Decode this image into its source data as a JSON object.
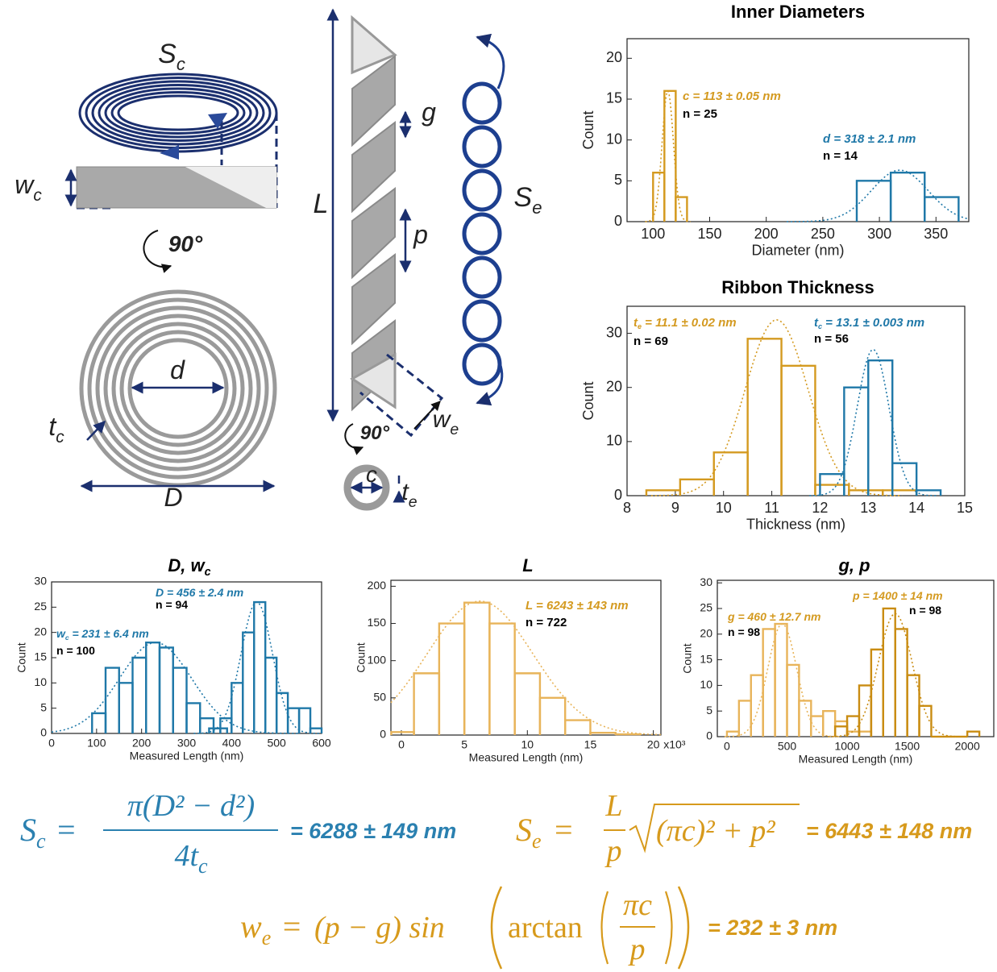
{
  "chart_data": [
    {
      "type": "histogram",
      "title": "Inner Diameters",
      "xlabel": "Diameter (nm)",
      "ylabel": "Count",
      "xlim": [
        77,
        379
      ],
      "ylim": [
        0,
        22.4
      ],
      "xticks": [
        100,
        150,
        200,
        250,
        300,
        350
      ],
      "yticks": [
        0,
        5,
        10,
        15,
        20
      ],
      "series": [
        {
          "color": "#d49a20",
          "bins": [
            100,
            110,
            120,
            130
          ],
          "values": [
            6,
            16,
            3
          ],
          "fit": {
            "mean": 113,
            "sd": 5,
            "peak": 16
          }
        },
        {
          "color": "#1f78a8",
          "bins": [
            280,
            310,
            340,
            370
          ],
          "values": [
            5,
            6,
            3
          ],
          "fit": {
            "mean": 318,
            "sd": 25,
            "peak": 6.3
          }
        }
      ],
      "annotations": [
        {
          "text": "c = 113 ± 0.05 nm",
          "color": "#d49a20",
          "italic": true
        },
        {
          "text": "n = 25",
          "color": "#000000",
          "italic": false
        },
        {
          "text": "d = 318 ± 2.1 nm",
          "color": "#1f78a8",
          "italic": true
        },
        {
          "text": "n = 14",
          "color": "#000000",
          "italic": false
        }
      ]
    },
    {
      "type": "histogram",
      "title": "Ribbon Thickness",
      "xlabel": "Thickness (nm)",
      "ylabel": "Count",
      "xlim": [
        8,
        15
      ],
      "ylim": [
        0,
        35
      ],
      "xticks": [
        8,
        9,
        10,
        11,
        12,
        13,
        14,
        15
      ],
      "yticks": [
        0,
        10,
        20,
        30
      ],
      "series": [
        {
          "color": "#d49a20",
          "bins": [
            8.4,
            9.1,
            9.8,
            10.5,
            11.2,
            11.9,
            12.6,
            13.3,
            14.0
          ],
          "values": [
            1,
            3,
            8,
            29,
            24,
            2,
            1,
            1
          ],
          "fit": {
            "mean": 11.1,
            "sd": 0.65,
            "peak": 32.5
          }
        },
        {
          "color": "#1f78a8",
          "bins": [
            12.0,
            12.5,
            13.0,
            13.5,
            14.0,
            14.5
          ],
          "values": [
            4,
            20,
            25,
            6,
            1
          ],
          "fit": {
            "mean": 13.1,
            "sd": 0.33,
            "peak": 27
          }
        }
      ],
      "annotations": [
        {
          "text": "t",
          "sub": "e",
          "rest": " = 11.1 ± 0.02 nm",
          "color": "#d49a20",
          "italic": true
        },
        {
          "text": "n = 69",
          "color": "#000000",
          "italic": false
        },
        {
          "text": "t",
          "sub": "c",
          "rest": " = 13.1 ± 0.003 nm",
          "color": "#1f78a8",
          "italic": true
        },
        {
          "text": "n = 56",
          "color": "#000000",
          "italic": false
        }
      ]
    },
    {
      "type": "histogram",
      "title": "D, w",
      "title_sub": "c",
      "xlabel": "Measured Length (nm)",
      "ylabel": "Count",
      "xlim": [
        0,
        600
      ],
      "ylim": [
        0,
        30
      ],
      "xticks": [
        0,
        100,
        200,
        300,
        400,
        500,
        600
      ],
      "yticks": [
        0,
        5,
        10,
        15,
        20,
        25,
        30
      ],
      "series": [
        {
          "color": "#1f78a8",
          "bins": [
            90,
            120,
            150,
            180,
            210,
            240,
            270,
            300,
            330,
            360,
            390
          ],
          "values": [
            4,
            13,
            10,
            15,
            18,
            17,
            13,
            6,
            3,
            1
          ],
          "fit": {
            "mean": 231,
            "sd": 80,
            "peak": 18
          }
        },
        {
          "color": "#1f78a8",
          "bins": [
            350,
            375,
            400,
            425,
            450,
            475,
            500,
            525,
            550,
            575,
            600
          ],
          "values": [
            1,
            3,
            10,
            20,
            26,
            15,
            8,
            5,
            5,
            1
          ],
          "fit": {
            "mean": 456,
            "sd": 35,
            "peak": 26
          }
        }
      ],
      "annotations": [
        {
          "text": "D = 456 ± 2.4 nm",
          "color": "#1f78a8",
          "italic": true
        },
        {
          "text": "n = 94",
          "color": "#000000",
          "italic": false
        },
        {
          "text": "w",
          "sub": "c",
          "rest": " = 231 ± 6.4 nm",
          "color": "#1f78a8",
          "italic": true
        },
        {
          "text": "n = 100",
          "color": "#000000",
          "italic": false
        }
      ]
    },
    {
      "type": "histogram",
      "title": "L",
      "xlabel": "Measured Length (nm)",
      "ylabel": "Count",
      "x_multiplier": "x10³",
      "xlim": [
        -0.83,
        20.6
      ],
      "ylim": [
        0,
        208
      ],
      "xticks": [
        0,
        5,
        10,
        15,
        20
      ],
      "yticks": [
        0,
        50,
        100,
        150,
        200
      ],
      "series": [
        {
          "color": "#e8b45a",
          "bins": [
            -0.8,
            1,
            3,
            5,
            7,
            9,
            11,
            13,
            15,
            17,
            19
          ],
          "values": [
            4,
            83,
            150,
            178,
            150,
            83,
            50,
            20,
            3,
            1
          ],
          "fit": {
            "mean": 6.243,
            "sd": 4.2,
            "peak": 180
          }
        }
      ],
      "annotations": [
        {
          "text": "L = 6243 ± 143 nm",
          "color": "#d49a20",
          "italic": true
        },
        {
          "text": "n = 722",
          "color": "#000000",
          "italic": false
        }
      ]
    },
    {
      "type": "histogram",
      "title": "g, p",
      "xlabel": "Measured Length (nm)",
      "ylabel": "Count",
      "xlim": [
        -80,
        2220
      ],
      "ylim": [
        0,
        30.5
      ],
      "xticks": [
        0,
        500,
        1000,
        1500,
        2000
      ],
      "yticks": [
        0,
        5,
        10,
        15,
        20,
        25,
        30
      ],
      "series": [
        {
          "color": "#e8b45a",
          "bins": [
            0,
            100,
            200,
            300,
            400,
            500,
            600,
            700,
            800,
            900,
            1000,
            1100,
            1200
          ],
          "values": [
            1,
            7,
            12,
            21,
            22,
            14,
            7,
            4,
            5,
            3,
            1,
            1
          ],
          "fit": {
            "mean": 460,
            "sd": 120,
            "peak": 22
          }
        },
        {
          "color": "#c98c12",
          "bins": [
            900,
            1000,
            1100,
            1200,
            1300,
            1400,
            1500,
            1600,
            1700,
            1800,
            1900,
            2000,
            2100
          ],
          "values": [
            2,
            4,
            10,
            17,
            25,
            21,
            12,
            6,
            0,
            0,
            0,
            1
          ],
          "fit": {
            "mean": 1400,
            "sd": 140,
            "peak": 24
          }
        }
      ],
      "annotations": [
        {
          "text": "g = 460 ± 12.7 nm",
          "color": "#d49a20",
          "italic": true
        },
        {
          "text": "n = 98",
          "color": "#000000",
          "italic": false
        },
        {
          "text": "p = 1400 ± 14 nm",
          "color": "#d49a20",
          "italic": true
        },
        {
          "text": "n = 98",
          "color": "#000000",
          "italic": false
        }
      ]
    }
  ],
  "diagram": {
    "labels": [
      {
        "text": "S",
        "sub": "c"
      },
      {
        "text": "w",
        "sub": "c"
      },
      {
        "text": "90°"
      },
      {
        "text": "d"
      },
      {
        "text": "t",
        "sub": "c"
      },
      {
        "text": "D"
      },
      {
        "text": "L"
      },
      {
        "text": "g"
      },
      {
        "text": "p"
      },
      {
        "text": "S",
        "sub": "e"
      },
      {
        "text": "w",
        "sub": "e"
      },
      {
        "text": "90°"
      },
      {
        "text": "c"
      },
      {
        "text": "t",
        "sub": "e"
      }
    ]
  },
  "equations": [
    {
      "color": "#2a80b0",
      "lhs": "S",
      "lhs_sub": "c",
      "eq": "=",
      "numerator": "π(D² − d²)",
      "denominator": "4t",
      "denominator_sub": "c",
      "result": "= 6288 ± 149 nm"
    },
    {
      "color": "#d79a1c",
      "lhs": "S",
      "lhs_sub": "e",
      "eq": "=",
      "numerator": "L",
      "denominator": "p",
      "radicand": "(πc)² + p²",
      "result": "= 6443 ± 148 nm"
    },
    {
      "color": "#d79a1c",
      "lhs": "w",
      "lhs_sub": "e",
      "eq": "=",
      "expr": "(p − g) sin",
      "func": "arctan",
      "numerator": "πc",
      "denominator": "p",
      "result": "= 232 ± 3 nm"
    }
  ]
}
